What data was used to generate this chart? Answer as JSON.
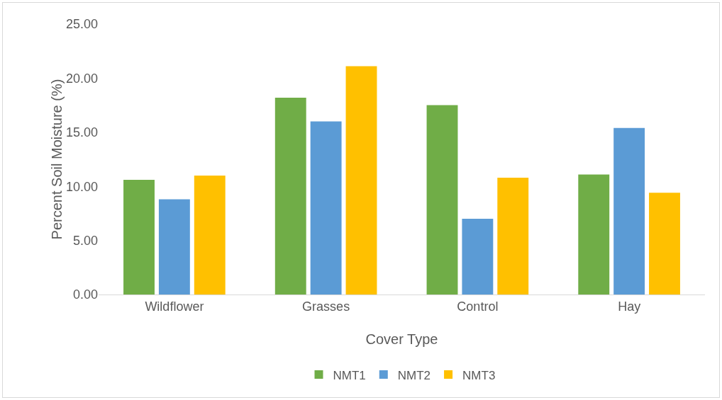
{
  "chart_data": {
    "type": "bar",
    "xlabel": "Cover Type",
    "ylabel": "Percent Soil Moisture (%)",
    "categories": [
      "Wildflower",
      "Grasses",
      "Control",
      "Hay"
    ],
    "series": [
      {
        "name": "NMT1",
        "color": "#70ad47",
        "values": [
          10.6,
          18.2,
          17.5,
          11.1
        ]
      },
      {
        "name": "NMT2",
        "color": "#5b9bd5",
        "values": [
          8.8,
          16.0,
          7.0,
          15.4
        ]
      },
      {
        "name": "NMT3",
        "color": "#ffc000",
        "values": [
          11.0,
          21.1,
          10.8,
          9.4
        ]
      }
    ],
    "ylim": [
      0,
      25
    ],
    "yticks": [
      {
        "value": 0,
        "label": "0.00"
      },
      {
        "value": 5,
        "label": "5.00"
      },
      {
        "value": 10,
        "label": "10.00"
      },
      {
        "value": 15,
        "label": "15.00"
      },
      {
        "value": 20,
        "label": "20.00"
      },
      {
        "value": 25,
        "label": "25.00"
      }
    ],
    "grid": false,
    "legend": "bottom"
  }
}
